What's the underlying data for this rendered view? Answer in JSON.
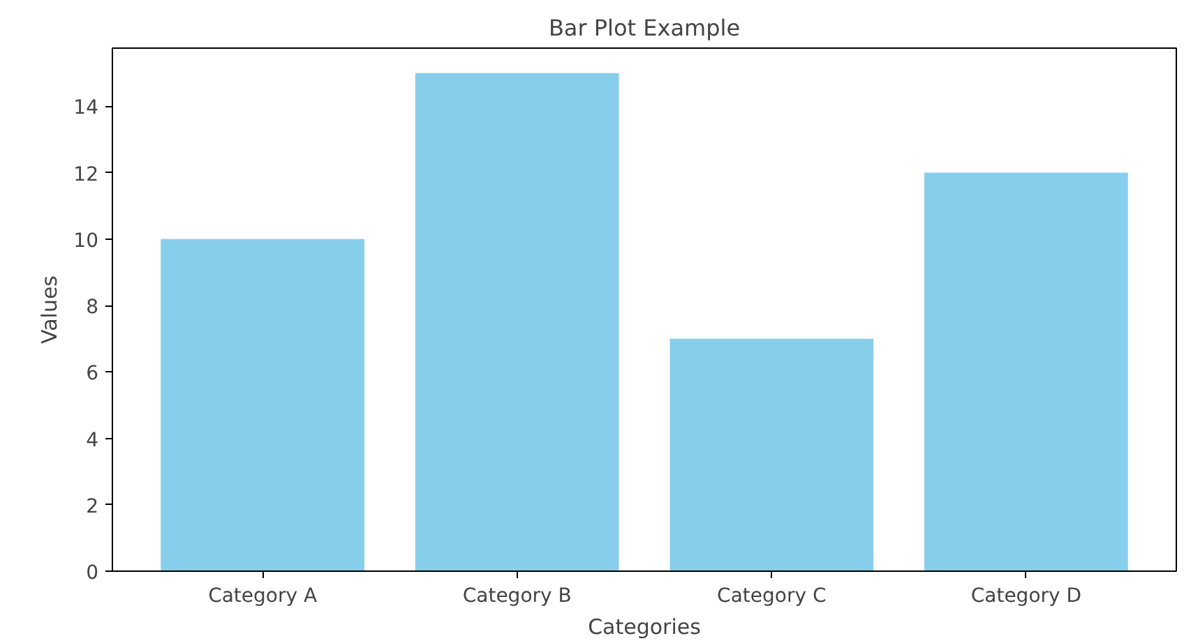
{
  "chart_data": {
    "type": "bar",
    "title": "Bar Plot Example",
    "xlabel": "Categories",
    "ylabel": "Values",
    "categories": [
      "Category A",
      "Category B",
      "Category C",
      "Category D"
    ],
    "values": [
      10,
      15,
      7,
      12
    ],
    "color": "#87ceeb",
    "ylim": [
      0,
      15.75
    ],
    "yticks": [
      0,
      2,
      4,
      6,
      8,
      10,
      12,
      14
    ],
    "grid": false
  }
}
